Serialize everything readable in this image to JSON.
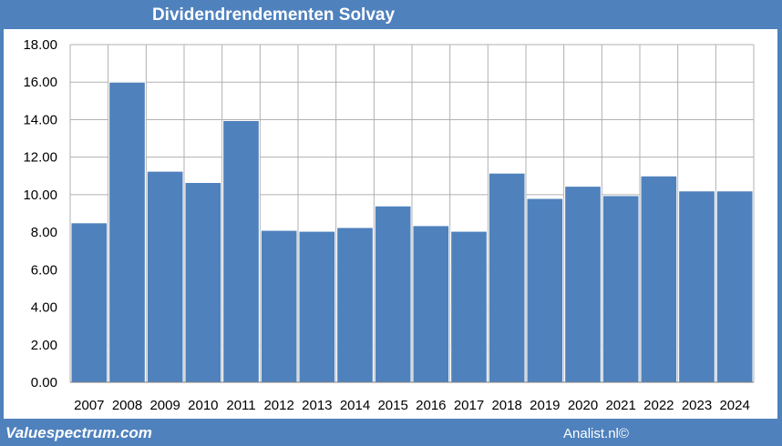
{
  "header": {
    "title": "Dividendrendementen Solvay"
  },
  "footer": {
    "left": "Valuespectrum.com",
    "right": "Analist.nl©"
  },
  "colors": {
    "background": "#4f81bd",
    "bar": "#4f81bd",
    "grid": "#b0b0b0",
    "panel": "#ffffff"
  },
  "chart_data": {
    "type": "bar",
    "title": "Dividendrendementen Solvay",
    "xlabel": "",
    "ylabel": "",
    "categories": [
      "2007",
      "2008",
      "2009",
      "2010",
      "2011",
      "2012",
      "2013",
      "2014",
      "2015",
      "2016",
      "2017",
      "2018",
      "2019",
      "2020",
      "2021",
      "2022",
      "2023",
      "2024"
    ],
    "values": [
      8.5,
      16.0,
      11.25,
      10.65,
      13.95,
      8.1,
      8.05,
      8.25,
      9.4,
      8.35,
      8.05,
      11.15,
      9.8,
      10.45,
      9.95,
      11.0,
      10.2,
      10.2
    ],
    "ylim": [
      0,
      18
    ],
    "yticks": [
      "0.00",
      "2.00",
      "4.00",
      "6.00",
      "8.00",
      "10.00",
      "12.00",
      "14.00",
      "16.00",
      "18.00"
    ],
    "grid": true
  }
}
